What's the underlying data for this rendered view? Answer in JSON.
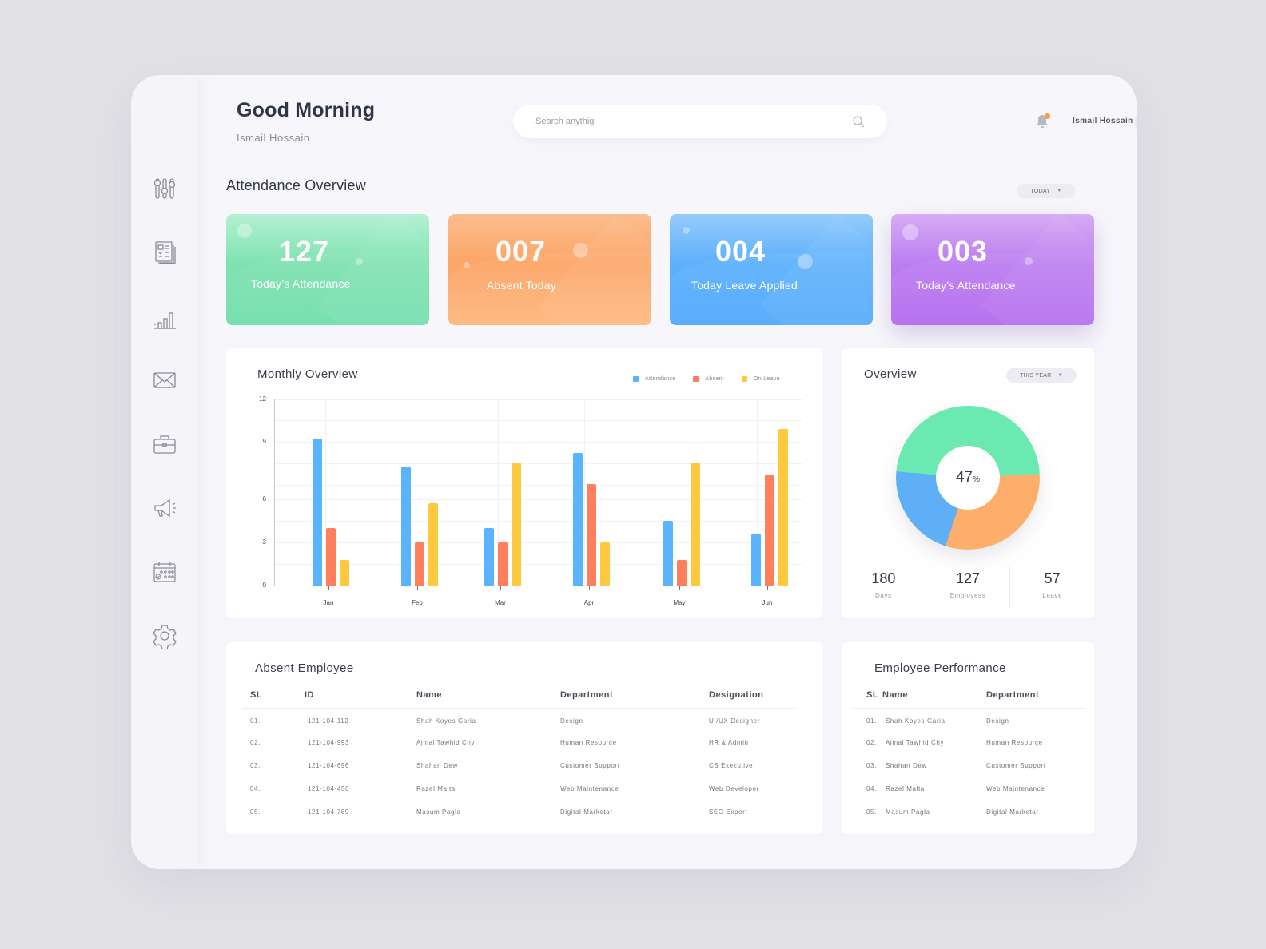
{
  "header": {
    "greeting": "Good Morning",
    "subtitle": "Ismail Hossain",
    "search_placeholder": "Search anythig",
    "user_name": "Ismail Hossain",
    "notification_dot_color": "#ff9a3c"
  },
  "sidebar": {
    "items": [
      {
        "icon": "sliders-icon",
        "label": "Controls"
      },
      {
        "icon": "document-list-icon",
        "label": "Reports"
      },
      {
        "icon": "bar-chart-icon",
        "label": "Analytics"
      },
      {
        "icon": "mail-icon",
        "label": "Messages"
      },
      {
        "icon": "briefcase-icon",
        "label": "Jobs"
      },
      {
        "icon": "megaphone-icon",
        "label": "Announcements"
      },
      {
        "icon": "calendar-icon",
        "label": "Calendar"
      },
      {
        "icon": "gear-icon",
        "label": "Settings"
      }
    ]
  },
  "attendance_overview": {
    "title": "Attendance Overview",
    "filter": "TODAY",
    "cards": [
      {
        "value": "127",
        "label": "Today's Attendance",
        "color": "#6fdfac"
      },
      {
        "value": "007",
        "label": "Absent  Today",
        "color": "#fca566"
      },
      {
        "value": "004",
        "label": "Today Leave Applied",
        "color": "#50a9fb"
      },
      {
        "value": "003",
        "label": "Today's Attendance",
        "color": "#b36af0"
      }
    ]
  },
  "monthly_overview": {
    "title": "Monthly Overview",
    "legend": [
      {
        "label": "Attendance",
        "color": "#5ab4fd"
      },
      {
        "label": "Absent",
        "color": "#ff7e5c"
      },
      {
        "label": "On Leave",
        "color": "#ffc93f"
      }
    ]
  },
  "chart_data": [
    {
      "type": "bar",
      "title": "Monthly Overview",
      "categories": [
        "Jan",
        "Feb",
        "Mar",
        "Apr",
        "May",
        "Jun"
      ],
      "series": [
        {
          "name": "Attendance",
          "color": "#5ab4fd",
          "values": [
            9.2,
            7.7,
            4,
            8.4,
            4.5,
            3.6
          ]
        },
        {
          "name": "Absent",
          "color": "#ff7e5c",
          "values": [
            4,
            3,
            3,
            6.8,
            1.8,
            7.3
          ]
        },
        {
          "name": "On Leave",
          "color": "#ffc93f",
          "values": [
            1.8,
            5.7,
            7.9,
            3,
            7.9,
            9.9
          ]
        }
      ],
      "y_ticks": [
        0,
        3,
        6,
        9,
        12
      ],
      "ylim": [
        0,
        12
      ],
      "xlabel": "",
      "ylabel": "",
      "grid": true,
      "legend_position": "top-right"
    },
    {
      "type": "pie",
      "title": "Overview",
      "center_label": "47%",
      "slices": [
        {
          "name": "Green",
          "color": "#6ae9b0",
          "value": 47
        },
        {
          "name": "Orange",
          "color": "#fdae6b",
          "value": 31
        },
        {
          "name": "Blue",
          "color": "#5eaff5",
          "value": 22
        }
      ]
    }
  ],
  "overview": {
    "title": "Overview",
    "filter": "THIS YEAR",
    "center_value": "47",
    "center_unit": "%",
    "stats": [
      {
        "value": "180",
        "label": "Days"
      },
      {
        "value": "127",
        "label": "Employess"
      },
      {
        "value": "57",
        "label": "Leave"
      }
    ]
  },
  "absent_employee": {
    "title": "Absent Employee",
    "columns": [
      "SL",
      "ID",
      "Name",
      "Department",
      "Designation"
    ],
    "rows": [
      [
        "01.",
        "121-104-112",
        "Shah Koyes Garia",
        "Design",
        "UI/UX Designer"
      ],
      [
        "02.",
        "121-104-993",
        "Ajmal Tawhid Chy",
        "Human Resource",
        "HR & Admin"
      ],
      [
        "03.",
        "121-104-696",
        "Shahan Dew",
        "Customer Support",
        "CS Executive"
      ],
      [
        "04.",
        "121-104-456",
        "Razel Malta",
        "Web Maintenance",
        "Web Developer"
      ],
      [
        "05.",
        "121-104-789",
        "Masum Pagla",
        "Digital Marketar",
        "SEO Expert"
      ]
    ]
  },
  "employee_performance": {
    "title": "Employee Performance",
    "columns": [
      "SL",
      "Name",
      "Department"
    ],
    "rows": [
      [
        "01.",
        "Shah Koyes Garia",
        "Design"
      ],
      [
        "02.",
        "Ajmal Tawhid Chy",
        "Human Resource"
      ],
      [
        "03.",
        "Shahan Dew",
        "Customer Support"
      ],
      [
        "04.",
        "Razel Malta",
        "Web Maintenance"
      ],
      [
        "05.",
        "Masum Pagla",
        "Digital Marketar"
      ]
    ]
  }
}
